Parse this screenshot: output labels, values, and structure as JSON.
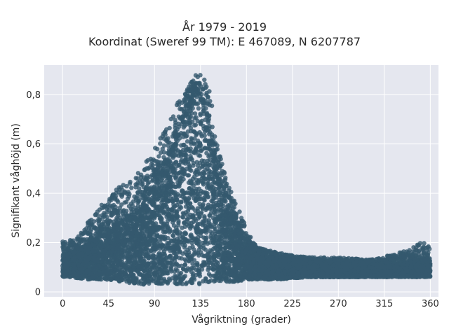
{
  "chart_data": {
    "type": "scatter",
    "title": "År 1979 - 2019",
    "subtitle": "Koordinat (Sweref 99 TM): E 467089, N 6207787",
    "xlabel": "Vågriktning (grader)",
    "ylabel": "Signifikant våghöjd (m)",
    "xlim": [
      -18,
      368
    ],
    "ylim": [
      -0.02,
      0.92
    ],
    "xticks": [
      0,
      45,
      90,
      135,
      180,
      225,
      270,
      315,
      360
    ],
    "xtick_labels": [
      "0",
      "45",
      "90",
      "135",
      "180",
      "225",
      "270",
      "315",
      "360"
    ],
    "yticks": [
      0,
      0.2,
      0.4,
      0.6,
      0.8
    ],
    "ytick_labels": [
      "0",
      "0,2",
      "0,4",
      "0,6",
      "0,8"
    ],
    "grid": true,
    "marker_color": "#34596e",
    "background_color": "#e5e7ef",
    "envelope": {
      "direction": [
        0,
        10,
        20,
        30,
        45,
        60,
        75,
        90,
        100,
        110,
        120,
        125,
        130,
        135,
        140,
        145,
        150,
        160,
        170,
        180,
        190,
        210,
        240,
        270,
        300,
        320,
        340,
        350,
        360
      ],
      "max_height": [
        0.21,
        0.21,
        0.25,
        0.32,
        0.38,
        0.45,
        0.5,
        0.58,
        0.66,
        0.75,
        0.82,
        0.86,
        0.88,
        0.88,
        0.87,
        0.8,
        0.62,
        0.46,
        0.36,
        0.26,
        0.18,
        0.16,
        0.14,
        0.14,
        0.13,
        0.15,
        0.17,
        0.2,
        0.2
      ],
      "min_height": [
        0.06,
        0.06,
        0.05,
        0.05,
        0.05,
        0.04,
        0.03,
        0.03,
        0.03,
        0.03,
        0.03,
        0.03,
        0.03,
        0.03,
        0.03,
        0.04,
        0.04,
        0.04,
        0.04,
        0.05,
        0.05,
        0.05,
        0.06,
        0.06,
        0.06,
        0.06,
        0.06,
        0.06,
        0.06
      ]
    },
    "dense_core_top": {
      "direction": [
        0,
        20,
        45,
        75,
        100,
        120,
        130,
        140,
        150,
        160,
        175,
        200,
        260,
        330,
        360
      ],
      "height": [
        0.14,
        0.18,
        0.25,
        0.33,
        0.5,
        0.7,
        0.82,
        0.75,
        0.5,
        0.33,
        0.22,
        0.14,
        0.11,
        0.11,
        0.13
      ]
    },
    "sample_count": 9000
  }
}
